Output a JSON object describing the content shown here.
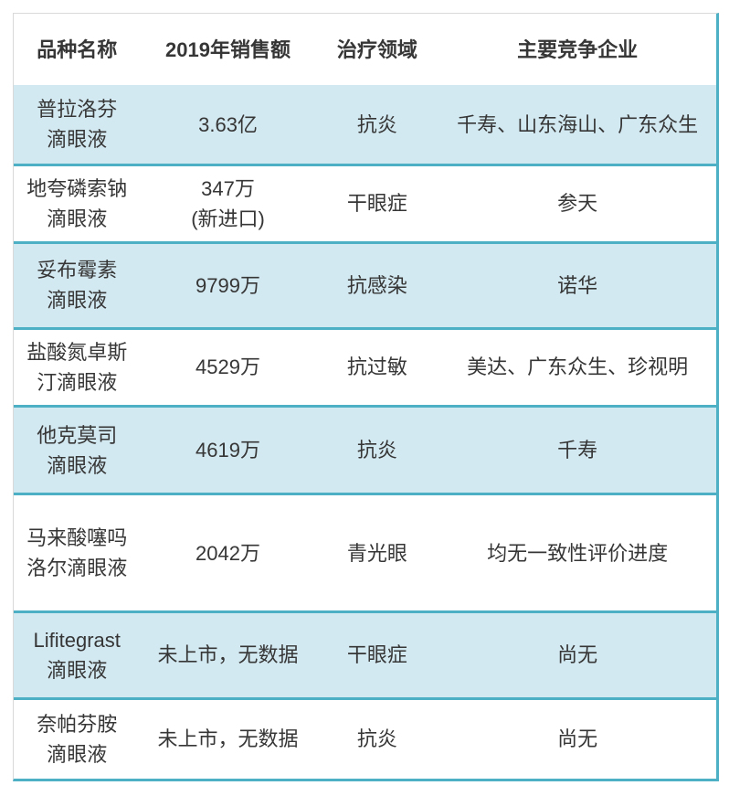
{
  "table": {
    "title_semantic": "eye-drop-products-2019-sales-and-competition",
    "columns": [
      {
        "label": "品种名称"
      },
      {
        "label": "2019年销售额"
      },
      {
        "label": "治疗领域"
      },
      {
        "label": "主要竞争企业"
      }
    ],
    "rows": [
      {
        "name": "普拉洛芬\n滴眼液",
        "sales_2019": "3.63亿",
        "therapy_area": "抗炎",
        "competitors": "千寿、山东海山、广东众生"
      },
      {
        "name": "地夸磷索钠\n滴眼液",
        "sales_2019": "347万\n(新进口)",
        "therapy_area": "干眼症",
        "competitors": "参天"
      },
      {
        "name": "妥布霉素\n滴眼液",
        "sales_2019": "9799万",
        "therapy_area": "抗感染",
        "competitors": "诺华"
      },
      {
        "name": "盐酸氮卓斯\n汀滴眼液",
        "sales_2019": "4529万",
        "therapy_area": "抗过敏",
        "competitors": "美达、广东众生、珍视明"
      },
      {
        "name": "他克莫司\n滴眼液",
        "sales_2019": "4619万",
        "therapy_area": "抗炎",
        "competitors": "千寿"
      },
      {
        "name": "马来酸噻吗\n洛尔滴眼液",
        "sales_2019": "2042万",
        "therapy_area": "青光眼",
        "competitors": "均无一致性评价进度"
      },
      {
        "name": "Lifitegrast\n滴眼液",
        "sales_2019": "未上市，无数据",
        "therapy_area": "干眼症",
        "competitors": "尚无"
      },
      {
        "name": "奈帕芬胺\n滴眼液",
        "sales_2019": "未上市，无数据",
        "therapy_area": "抗炎",
        "competitors": "尚无"
      }
    ]
  },
  "colors": {
    "shaded_row_background": "#d3e9f1",
    "divider_teal": "#4db0c5",
    "outer_border_gray": "#d9d9d9",
    "text": "#363636"
  }
}
